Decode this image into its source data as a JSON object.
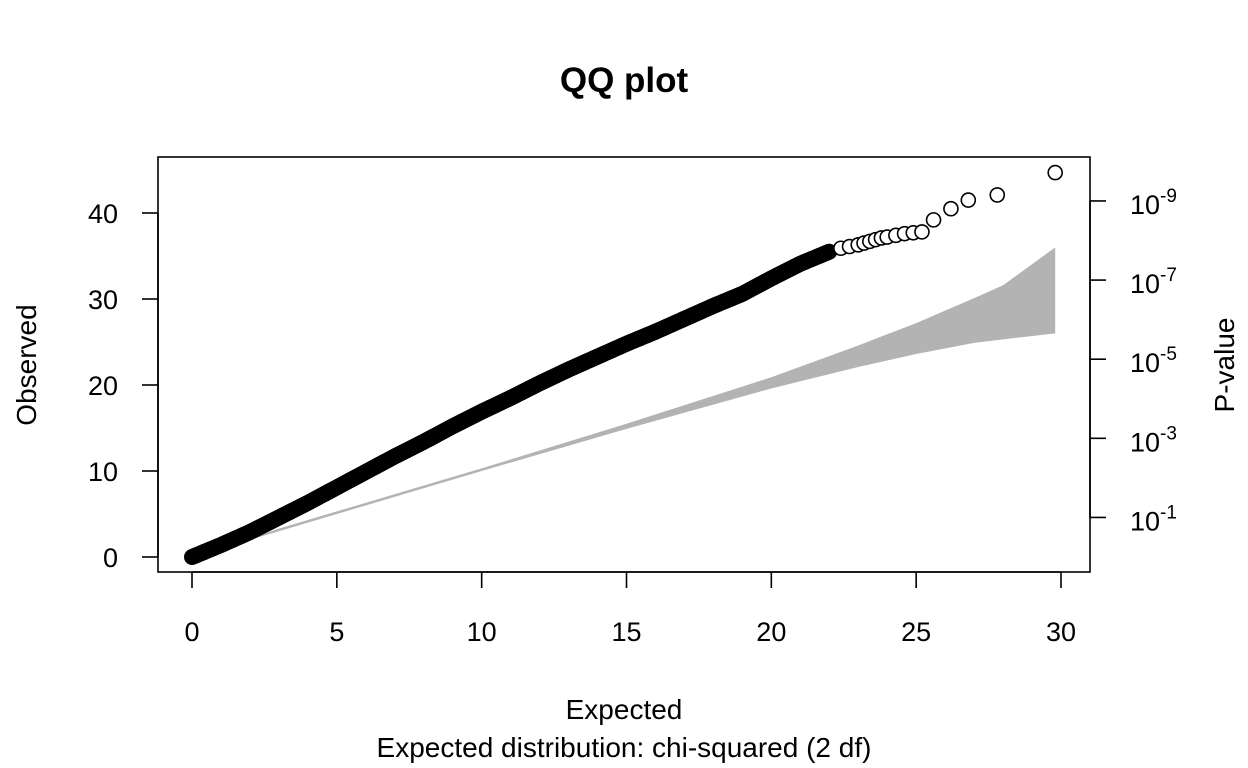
{
  "chart_data": {
    "type": "scatter",
    "title": "QQ plot",
    "xlabel": "Expected",
    "xlabel_sub": "Expected distribution: chi-squared (2 df)",
    "ylabel": "Observed",
    "y2label": "P-value",
    "xlim": [
      0,
      30
    ],
    "ylim": [
      0,
      45
    ],
    "x_ticks": [
      0,
      5,
      10,
      15,
      20,
      25,
      30
    ],
    "y_ticks": [
      0,
      10,
      20,
      30,
      40
    ],
    "y2_ticks": [
      {
        "base": "10",
        "exp": "-1",
        "observed": 4.6
      },
      {
        "base": "10",
        "exp": "-3",
        "observed": 13.8
      },
      {
        "base": "10",
        "exp": "-5",
        "observed": 23.0
      },
      {
        "base": "10",
        "exp": "-7",
        "observed": 32.2
      },
      {
        "base": "10",
        "exp": "-9",
        "observed": 41.4
      }
    ],
    "grid": false,
    "dense_curve": {
      "description_of_points": "observed vs expected, continuous dense band of filled circles",
      "x": [
        0,
        1,
        2,
        3,
        4,
        5,
        6,
        7,
        8,
        9,
        10,
        11,
        12,
        13,
        14,
        15,
        16,
        17,
        18,
        19,
        20,
        21,
        22
      ],
      "y": [
        0,
        1.4,
        2.9,
        4.6,
        6.3,
        8.1,
        9.9,
        11.7,
        13.4,
        15.2,
        16.9,
        18.5,
        20.2,
        21.8,
        23.3,
        24.8,
        26.2,
        27.7,
        29.2,
        30.6,
        32.4,
        34.1,
        35.5
      ]
    },
    "tail_points": {
      "x": [
        22.4,
        22.7,
        23.0,
        23.2,
        23.4,
        23.6,
        23.8,
        24.0,
        24.3,
        24.6,
        24.9,
        25.2,
        25.6,
        26.2,
        26.8,
        27.8,
        29.8
      ],
      "y": [
        35.9,
        36.1,
        36.3,
        36.5,
        36.7,
        36.9,
        37.1,
        37.2,
        37.4,
        37.6,
        37.7,
        37.8,
        39.2,
        40.5,
        41.5,
        42.1,
        44.7
      ]
    },
    "confidence_band": {
      "color": "#b3b3b3",
      "x": [
        3,
        5,
        10,
        15,
        20,
        23,
        25,
        27,
        28,
        29.8
      ],
      "upper": [
        3.3,
        5.3,
        10.3,
        15.5,
        20.9,
        24.6,
        27.2,
        30.1,
        31.6,
        36.0
      ],
      "lower": [
        3.0,
        5.0,
        10.0,
        14.9,
        19.6,
        22.1,
        23.6,
        24.9,
        25.3,
        26.0
      ]
    },
    "point_color": "#000000"
  }
}
